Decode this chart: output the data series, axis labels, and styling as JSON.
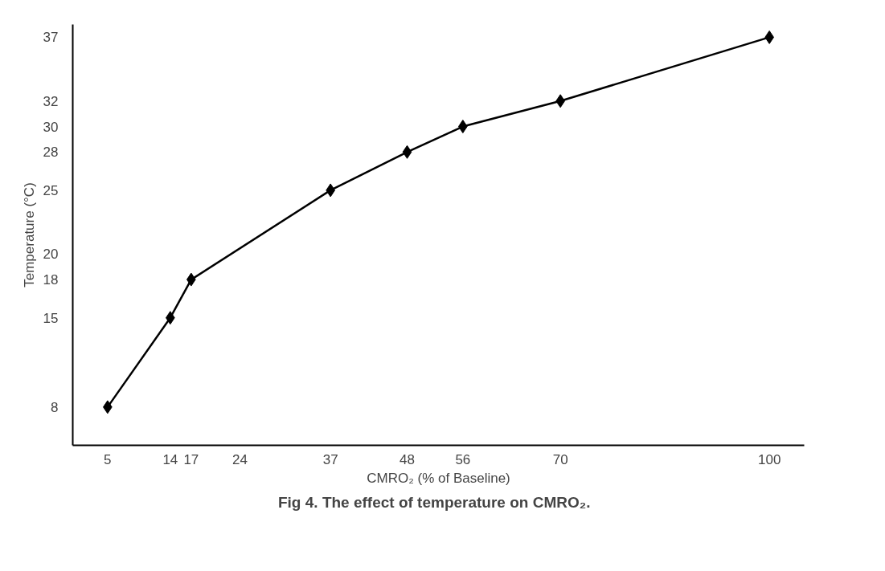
{
  "chart_data": {
    "type": "line",
    "title": "Fig 4.   The effect of temperature on CMRO₂.",
    "xlabel": "CMRO₂ (% of Baseline)",
    "ylabel": "Temperature (°C)",
    "x": [
      5,
      14,
      17,
      37,
      48,
      56,
      70,
      100
    ],
    "series": [
      {
        "color": "#000000",
        "values": [
          8,
          15,
          18,
          25,
          28,
          30,
          32,
          37
        ]
      }
    ],
    "xlim": [
      0,
      105
    ],
    "ylim": [
      5,
      38
    ],
    "xticks": [
      5,
      14,
      17,
      24,
      37,
      48,
      56,
      70,
      100
    ],
    "yticks": [
      8,
      15,
      18,
      20,
      25,
      28,
      30,
      32,
      37
    ],
    "marker": "diamond",
    "line_style": "solid",
    "grid": false
  }
}
